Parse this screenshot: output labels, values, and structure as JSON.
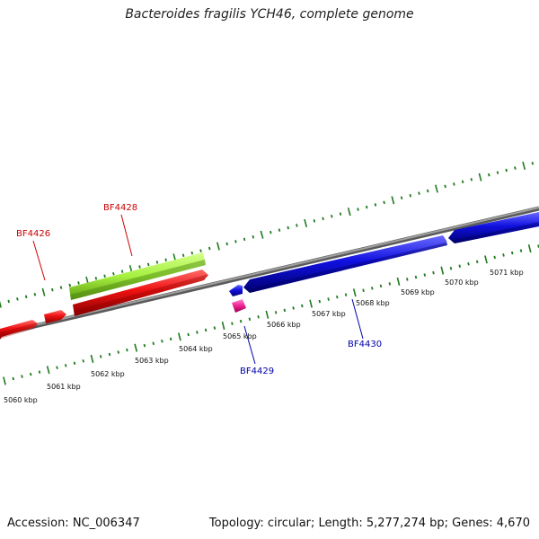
{
  "title": "Bacteroides fragilis YCH46, complete genome",
  "accession_text": "Accession: NC_006347",
  "genome_info_text": "Topology: circular; Length: 5,277,274 bp; Genes: 4,670",
  "colors": {
    "backbone": "#8a8a8a",
    "tick": "#1e7a1e",
    "forward_gene": "#ee1111",
    "highlight_gene": "#a6f040",
    "reverse_gene": "#1010e0",
    "small_gene": "#ee2090",
    "label_forward": "#cc0000",
    "label_reverse": "#0000aa"
  },
  "kbp_labels": [
    "5060 kbp",
    "5061 kbp",
    "5062 kbp",
    "5063 kbp",
    "5064 kbp",
    "5065 kbp",
    "5066 kbp",
    "5067 kbp",
    "5068 kbp",
    "5069 kbp",
    "5070 kbp",
    "5071 kbp"
  ],
  "gene_labels": {
    "bf4426": "BF4426",
    "bf4428": "BF4428",
    "bf4429": "BF4429",
    "bf4430": "BF4430"
  }
}
